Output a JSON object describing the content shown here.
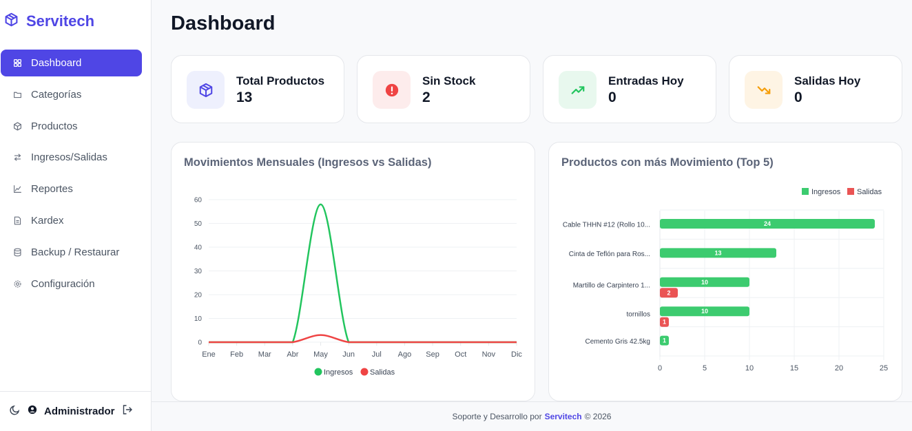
{
  "brand": {
    "name": "Servitech",
    "icon": "box-icon",
    "color": "#4f46e5"
  },
  "sidebar": {
    "items": [
      {
        "label": "Dashboard",
        "icon": "grid-icon",
        "active": true
      },
      {
        "label": "Categorías",
        "icon": "folder-icon"
      },
      {
        "label": "Productos",
        "icon": "box-icon"
      },
      {
        "label": "Ingresos/Salidas",
        "icon": "arrows-icon"
      },
      {
        "label": "Reportes",
        "icon": "chart-line-icon"
      },
      {
        "label": "Kardex",
        "icon": "document-icon"
      },
      {
        "label": "Backup / Restaurar",
        "icon": "database-icon"
      },
      {
        "label": "Configuración",
        "icon": "gear-icon"
      }
    ],
    "footer": {
      "user": "Administrador",
      "theme_icon": "moon-icon",
      "logout_icon": "logout-icon"
    }
  },
  "page": {
    "title": "Dashboard"
  },
  "stats": [
    {
      "label": "Total Productos",
      "value": "13",
      "icon": "box-icon",
      "color": "#4f46e5",
      "bg": "#eef0fd"
    },
    {
      "label": "Sin Stock",
      "value": "2",
      "icon": "alert-icon",
      "color": "#ef4444",
      "bg": "#fdecec"
    },
    {
      "label": "Entradas Hoy",
      "value": "0",
      "icon": "trend-up-icon",
      "color": "#22c55e",
      "bg": "#e8f8ee"
    },
    {
      "label": "Salidas Hoy",
      "value": "0",
      "icon": "trend-down-icon",
      "color": "#f59e0b",
      "bg": "#fef4e4"
    }
  ],
  "chart_data": [
    {
      "type": "line",
      "title": "Movimientos Mensuales (Ingresos vs Salidas)",
      "categories": [
        "Ene",
        "Feb",
        "Mar",
        "Abr",
        "May",
        "Jun",
        "Jul",
        "Ago",
        "Sep",
        "Oct",
        "Nov",
        "Dic"
      ],
      "series": [
        {
          "name": "Ingresos",
          "color": "#22c55e",
          "values": [
            0,
            0,
            0,
            0,
            58,
            0,
            0,
            0,
            0,
            0,
            0,
            0
          ]
        },
        {
          "name": "Salidas",
          "color": "#ef4444",
          "values": [
            0,
            0,
            0,
            0,
            3,
            0,
            0,
            0,
            0,
            0,
            0,
            0
          ]
        }
      ],
      "yticks": [
        0,
        10,
        20,
        30,
        40,
        50,
        60
      ],
      "ylim": [
        0,
        60
      ],
      "legend": "bottom",
      "grid": true
    },
    {
      "type": "bar",
      "orientation": "horizontal",
      "title": "Productos con más Movimiento (Top 5)",
      "categories": [
        "Cable THHN #12 (Rollo 10...",
        "Cinta de Teflón para Ros...",
        "Martillo de Carpintero 1...",
        "tornillos",
        "Cemento Gris 42.5kg"
      ],
      "series": [
        {
          "name": "Ingresos",
          "color": "#3ccb6f",
          "values": [
            24,
            13,
            10,
            10,
            1
          ]
        },
        {
          "name": "Salidas",
          "color": "#ea5454",
          "values": [
            0,
            0,
            2,
            1,
            0
          ]
        }
      ],
      "xticks": [
        0,
        5,
        10,
        15,
        20,
        25
      ],
      "xlim": [
        0,
        25
      ],
      "legend": "top-right",
      "grid": true
    }
  ],
  "footer": {
    "prefix": "Soporte y Desarrollo por",
    "brand": "Servitech",
    "suffix": "© 2026"
  }
}
